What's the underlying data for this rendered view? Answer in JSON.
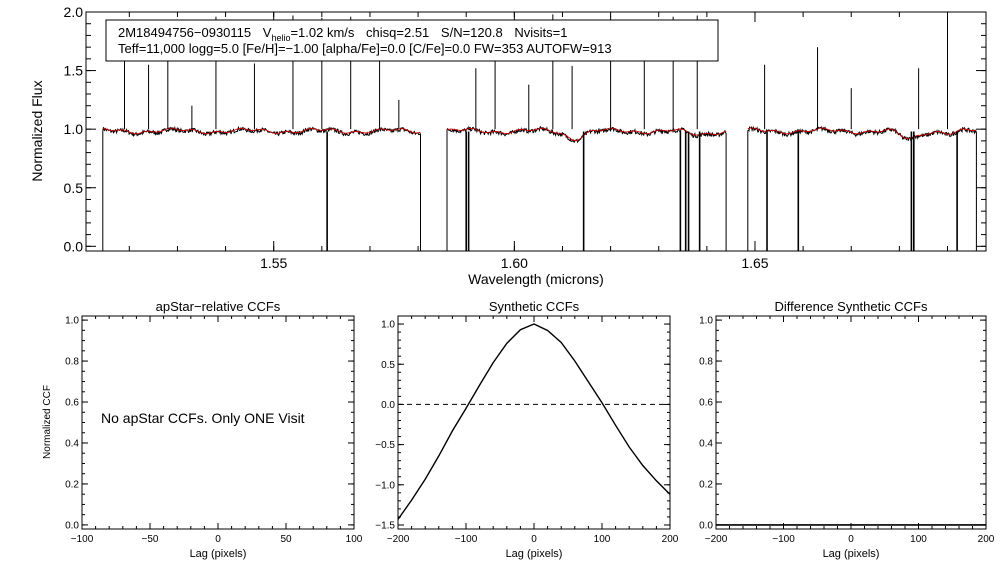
{
  "colors": {
    "axis": "#000000",
    "spectrum": "#000000",
    "model": "#cc0000",
    "ccf": "#000000"
  },
  "chart_data": [
    {
      "id": "spectrum",
      "type": "line",
      "xlabel": "Wavelength (microns)",
      "ylabel": "Normalized Flux",
      "xlim": [
        1.511,
        1.698
      ],
      "ylim": [
        -0.04,
        2.0
      ],
      "xticks": [
        1.55,
        1.6,
        1.65
      ],
      "xtick_labels": [
        "1.55",
        "1.60",
        "1.65"
      ],
      "yticks": [
        0.0,
        0.5,
        1.0,
        1.5,
        2.0
      ],
      "ytick_labels": [
        "0.0",
        "0.5",
        "1.0",
        "1.5",
        "2.0"
      ],
      "info": {
        "star": "2M18494756−0930115",
        "v": "V",
        "helio": "helio",
        "vhelio": "=1.02 km/s",
        "chisq": "chisq=2.51",
        "snr": "S/N=120.8",
        "nvisits": "Nvisits=1",
        "params": "Teff=11,000 logg=5.0 [Fe/H]=−1.00 [alpha/Fe]=0.0 [C/Fe]=0.0 FW=353 AUTOFW=913"
      },
      "segments": [
        [
          1.5145,
          1.5805
        ],
        [
          1.586,
          1.644
        ],
        [
          1.6485,
          1.696
        ]
      ],
      "baseline": 0.98,
      "absorption_dips": [
        {
          "center": 1.6125,
          "depth": 0.06,
          "width": 0.0025
        },
        {
          "center": 1.638,
          "depth": 0.03,
          "width": 0.003
        },
        {
          "center": 1.682,
          "depth": 0.07,
          "width": 0.0025
        },
        {
          "center": 1.691,
          "depth": 0.02,
          "width": 0.002
        }
      ],
      "emission_spikes": [
        [
          1.519,
          1.72
        ],
        [
          1.524,
          1.55
        ],
        [
          1.528,
          1.88
        ],
        [
          1.533,
          1.2
        ],
        [
          1.538,
          1.96
        ],
        [
          1.546,
          1.56
        ],
        [
          1.554,
          1.97
        ],
        [
          1.56,
          1.95
        ],
        [
          1.566,
          1.96
        ],
        [
          1.572,
          1.62
        ],
        [
          1.576,
          1.25
        ],
        [
          1.592,
          1.52
        ],
        [
          1.596,
          1.88
        ],
        [
          1.603,
          1.38
        ],
        [
          1.608,
          1.98
        ],
        [
          1.612,
          1.54
        ],
        [
          1.62,
          1.97
        ],
        [
          1.627,
          1.63
        ],
        [
          1.633,
          1.96
        ],
        [
          1.638,
          1.97
        ],
        [
          1.652,
          1.55
        ],
        [
          1.663,
          1.7
        ],
        [
          1.67,
          1.35
        ],
        [
          1.684,
          1.52
        ],
        [
          1.69,
          1.98
        ]
      ],
      "drop_lines": [
        1.5611,
        1.59,
        1.5905,
        1.6144,
        1.6345,
        1.6356,
        1.6362,
        1.6385,
        1.6525,
        1.659,
        1.6825,
        1.683,
        1.692
      ]
    },
    {
      "id": "apstar-ccf",
      "type": "line",
      "title": "apStar−relative CCFs",
      "xlabel": "Lag (pixels)",
      "ylabel": "Normalized CCF",
      "xlim": [
        -100,
        100
      ],
      "ylim": [
        -0.02,
        1.02
      ],
      "xticks": [
        -100,
        -50,
        0,
        50,
        100
      ],
      "xtick_labels": [
        "−100",
        "−50",
        "0",
        "50",
        "100"
      ],
      "yticks": [
        0.0,
        0.2,
        0.4,
        0.6,
        0.8,
        1.0
      ],
      "ytick_labels": [
        "0.0",
        "0.2",
        "0.4",
        "0.6",
        "0.8",
        "1.0"
      ],
      "annotation": "No apStar CCFs.  Only ONE Visit",
      "series": []
    },
    {
      "id": "synthetic-ccf",
      "type": "line",
      "title": "Synthetic CCFs",
      "xlabel": "Lag (pixels)",
      "xlim": [
        -200,
        200
      ],
      "ylim": [
        -1.55,
        1.1
      ],
      "xticks": [
        -200,
        -100,
        0,
        100,
        200
      ],
      "xtick_labels": [
        "−200",
        "−100",
        "0",
        "100",
        "200"
      ],
      "yticks": [
        -1.5,
        -1.0,
        -0.5,
        0.0,
        0.5,
        1.0
      ],
      "ytick_labels": [
        "−1.5",
        "−1.0",
        "−0.5",
        "0.0",
        "0.5",
        "1.0"
      ],
      "reference_line": 0.0,
      "series": [
        {
          "name": "ccf",
          "x": [
            -200,
            -180,
            -160,
            -140,
            -120,
            -100,
            -80,
            -60,
            -40,
            -20,
            0,
            20,
            40,
            60,
            80,
            100,
            120,
            140,
            160,
            180,
            200
          ],
          "y": [
            -1.43,
            -1.19,
            -0.93,
            -0.64,
            -0.33,
            -0.05,
            0.24,
            0.52,
            0.76,
            0.93,
            1.0,
            0.92,
            0.77,
            0.54,
            0.28,
            0.02,
            -0.26,
            -0.53,
            -0.76,
            -0.95,
            -1.12
          ]
        }
      ]
    },
    {
      "id": "difference-ccf",
      "type": "line",
      "title": "Difference Synthetic CCFs",
      "xlabel": "Lag (pixels)",
      "xlim": [
        -200,
        200
      ],
      "ylim": [
        -0.02,
        1.02
      ],
      "xticks": [
        -200,
        -100,
        0,
        100,
        200
      ],
      "xtick_labels": [
        "−200",
        "−100",
        "0",
        "100",
        "200"
      ],
      "yticks": [
        0.0,
        0.2,
        0.4,
        0.6,
        0.8,
        1.0
      ],
      "ytick_labels": [
        "0.0",
        "0.2",
        "0.4",
        "0.6",
        "0.8",
        "1.0"
      ],
      "series": [
        {
          "name": "difference",
          "x": [
            -200,
            200
          ],
          "y": [
            0.0,
            0.0
          ]
        }
      ]
    }
  ]
}
